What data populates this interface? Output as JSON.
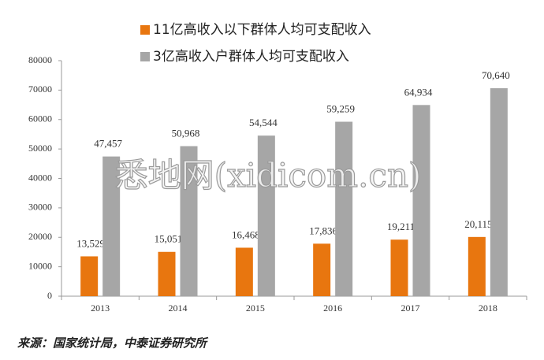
{
  "chart_data": {
    "type": "bar",
    "categories": [
      "2013",
      "2014",
      "2015",
      "2016",
      "2017",
      "2018"
    ],
    "series": [
      {
        "name": "11亿高收入以下群体人均可支配收入",
        "color": "#e8760f",
        "values": [
          13529,
          15051,
          16468,
          17836,
          19211,
          20115
        ],
        "value_labels": [
          "13,529",
          "15,051",
          "16,468",
          "17,836",
          "19,211",
          "20,115"
        ]
      },
      {
        "name": "3亿高收入户群体人均可支配收入",
        "color": "#a6a6a6",
        "values": [
          47457,
          50968,
          54544,
          59259,
          64934,
          70640
        ],
        "value_labels": [
          "47,457",
          "50,968",
          "54,544",
          "59,259",
          "64,934",
          "70,640"
        ]
      }
    ],
    "ylim": [
      0,
      80000
    ],
    "yticks": [
      0,
      10000,
      20000,
      30000,
      40000,
      50000,
      60000,
      70000,
      80000
    ],
    "watermark": "悉地网(xidicom.cn)",
    "source": "来源：国家统计局，中泰证券研究所"
  }
}
